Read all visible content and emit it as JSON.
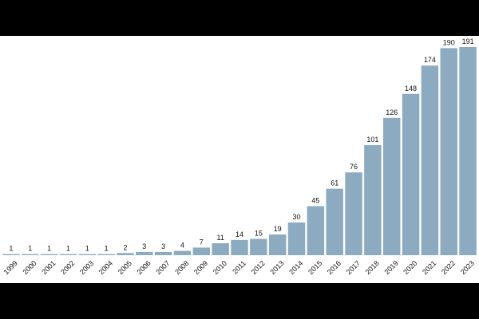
{
  "chart_data": {
    "type": "bar",
    "categories": [
      "1999",
      "2000",
      "2001",
      "2002",
      "2003",
      "2004",
      "2005",
      "2006",
      "2007",
      "2008",
      "2009",
      "2010",
      "2011",
      "2012",
      "2013",
      "2014",
      "2015",
      "2016",
      "2017",
      "2018",
      "2019",
      "2020",
      "2021",
      "2022",
      "2023"
    ],
    "values": [
      1,
      1,
      1,
      1,
      1,
      1,
      2,
      3,
      3,
      4,
      7,
      11,
      14,
      15,
      19,
      30,
      45,
      61,
      76,
      101,
      126,
      148,
      174,
      190,
      191
    ],
    "color": "#8cabc1"
  }
}
